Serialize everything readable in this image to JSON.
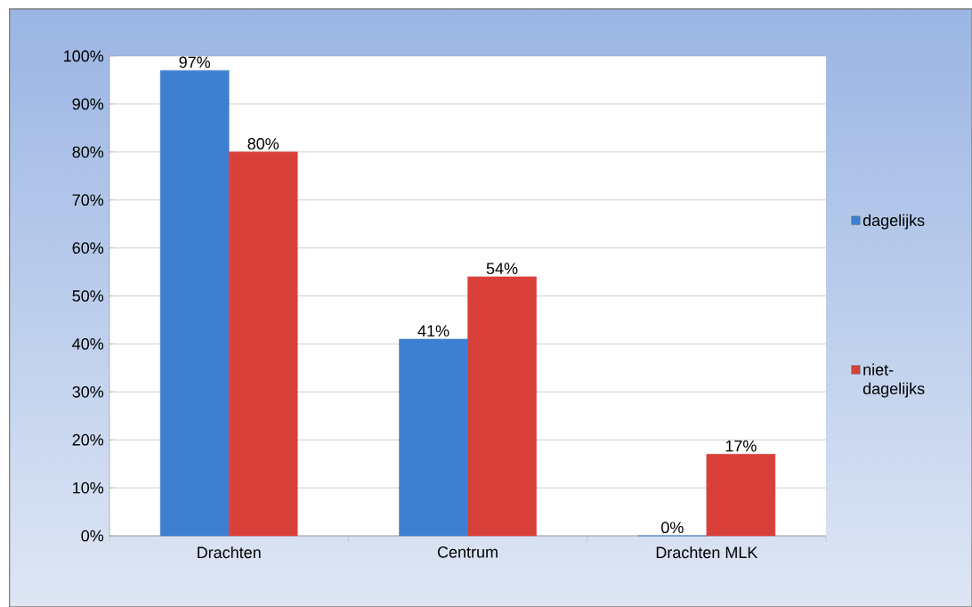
{
  "chart_data": {
    "type": "bar",
    "categories": [
      "Drachten",
      "Centrum",
      "Drachten MLK"
    ],
    "series": [
      {
        "name": "dagelijks",
        "color": "#3d7fd0",
        "values": [
          97,
          41,
          0
        ],
        "value_labels": [
          "97%",
          "41%",
          "0%"
        ]
      },
      {
        "name": "niet-dagelijks",
        "color": "#d9403a",
        "values": [
          80,
          54,
          17
        ],
        "value_labels": [
          "80%",
          "54%",
          "17%"
        ]
      }
    ],
    "ylim": [
      0,
      100
    ],
    "yticks": [
      {
        "value": 0,
        "label": "0%"
      },
      {
        "value": 10,
        "label": "10%"
      },
      {
        "value": 20,
        "label": "20%"
      },
      {
        "value": 30,
        "label": "30%"
      },
      {
        "value": 40,
        "label": "40%"
      },
      {
        "value": 50,
        "label": "50%"
      },
      {
        "value": 60,
        "label": "60%"
      },
      {
        "value": 70,
        "label": "70%"
      },
      {
        "value": 80,
        "label": "80%"
      },
      {
        "value": 90,
        "label": "90%"
      },
      {
        "value": 100,
        "label": "100%"
      }
    ],
    "grid": "y",
    "legend": "right"
  }
}
